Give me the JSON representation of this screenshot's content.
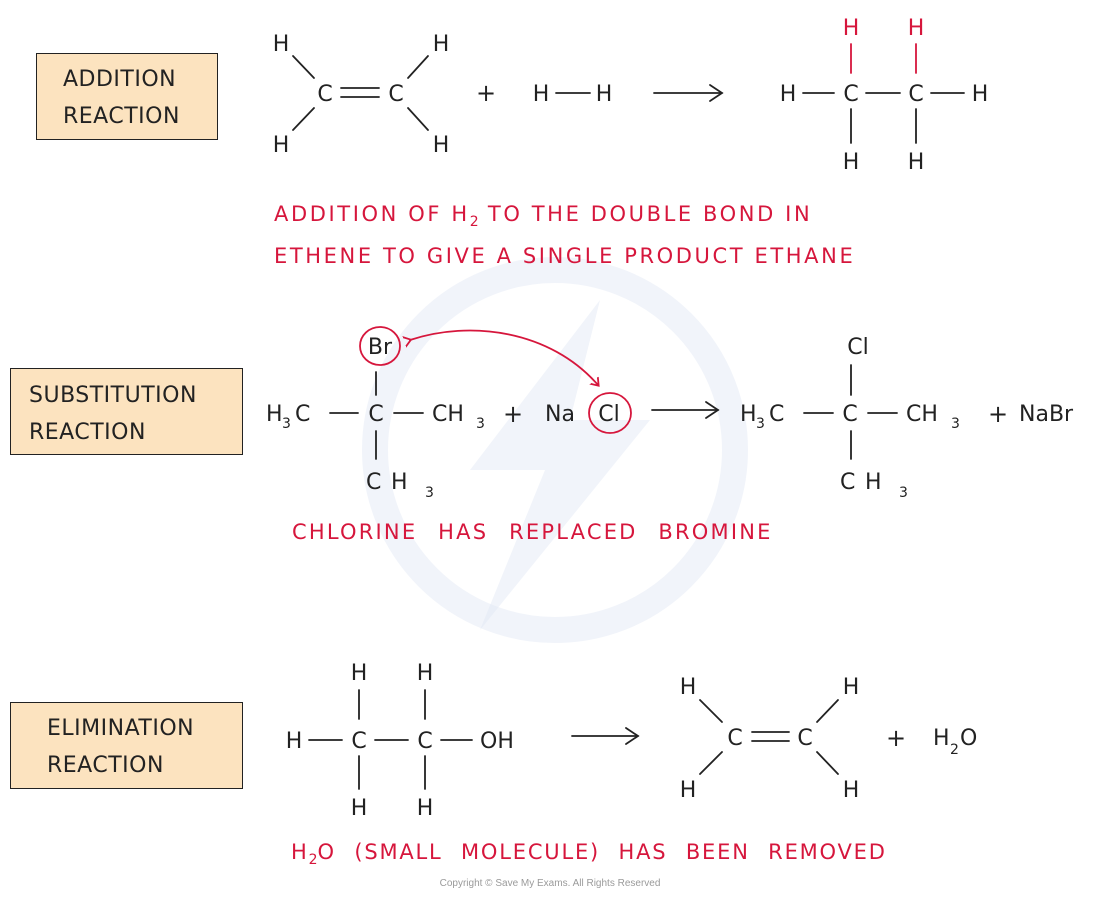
{
  "colors": {
    "ink": "#222222",
    "accent_red": "#d6163c",
    "label_fill": "#fce3bf",
    "watermark": "#dfe6f3"
  },
  "addition": {
    "label_line1": "ADDITION",
    "label_line2": "REACTION",
    "note_line1_a": "ADDITION OF H",
    "note_line1_sub": "2",
    "note_line1_b": " TO THE DOUBLE BOND IN",
    "note_line2": "ETHENE TO GIVE A SINGLE PRODUCT ETHANE"
  },
  "substitution": {
    "label_line1": "SUBSTITUTION",
    "label_line2": "REACTION",
    "note": "CHLORINE HAS REPLACED BROMINE"
  },
  "elimination": {
    "label_line1": "ELIMINATION",
    "label_line2": "REACTION",
    "note_a": "H",
    "note_sub": "2",
    "note_b": "O (SMALL MOLECULE) HAS BEEN REMOVED"
  },
  "atoms": {
    "H": "H",
    "C": "C",
    "Br": "Br",
    "Cl": "Cl",
    "Na": "Na",
    "OH": "OH",
    "O": "O",
    "NaBr": "NaBr",
    "sub2": "2",
    "sub3": "3",
    "plus": "+"
  },
  "copyright": "Copyright © Save My Exams. All Rights Reserved"
}
